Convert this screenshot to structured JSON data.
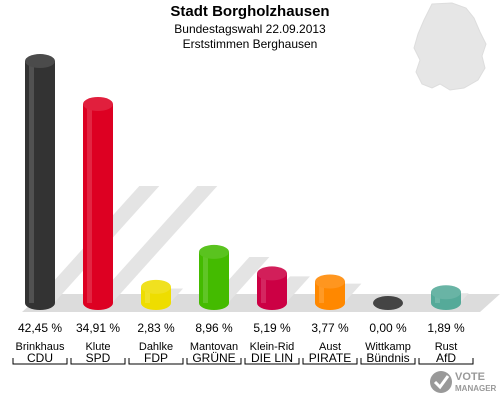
{
  "header": {
    "title": "Stadt Borgholzhausen",
    "subtitle": "Bundestagswahl 22.09.2013",
    "subtitle2": "Erststimmen Berghausen"
  },
  "chart_data": {
    "type": "bar",
    "title": "Stadt Borgholzhausen",
    "categories": [
      "Brinkhaus",
      "Klute",
      "Dahlke",
      "Mantovan",
      "Klein-Rid",
      "Aust",
      "Wittkamp",
      "Rust"
    ],
    "parties": [
      "CDU",
      "SPD",
      "FDP",
      "GRÜNE",
      "DIE LIN",
      "PIRATE",
      "Bündnis",
      "AfD"
    ],
    "values": [
      42.45,
      34.91,
      2.83,
      8.96,
      5.19,
      3.77,
      0.0,
      1.89
    ],
    "value_labels": [
      "42,45 %",
      "34,91 %",
      "2,83 %",
      "8,96 %",
      "5,19 %",
      "3,77 %",
      "0,00 %",
      "1,89 %"
    ],
    "colors": [
      "#333333",
      "#dd0022",
      "#eedd00",
      "#44bb00",
      "#cc0044",
      "#ff8800",
      "#444444",
      "#55aa99"
    ],
    "grid": false,
    "legend": "none"
  },
  "logo": {
    "text": "VOTE MANAGER"
  }
}
